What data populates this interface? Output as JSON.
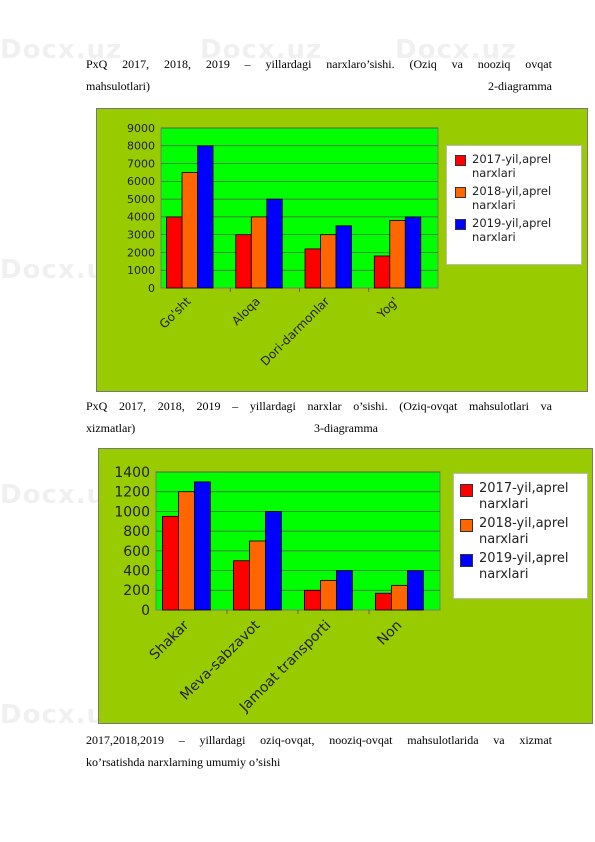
{
  "watermark_text": "Docx.uz",
  "paragraph1": {
    "line1_words": [
      "PxQ",
      "2017,",
      "2018,",
      "2019",
      "–",
      "yillardagi",
      "narxlaro’sishi.",
      "(Oziq",
      "va",
      "nooziq",
      "ovqat"
    ],
    "line2_left": "mahsulotlari)",
    "line2_right": "2-diagramma"
  },
  "paragraph2": {
    "line1": "PxQ   2017, 2018, 2019 – yillardagi narxlar o’sishi. (Oziq-ovqat mahsulotlari va",
    "line2_left": "xizmatlar)",
    "line2_right": "3-diagramma"
  },
  "paragraph3": {
    "line1": "2017,2018,2019 – yillardagi oziq-ovqat, nooziq-ovqat mahsulotlarida va xizmat",
    "line2": "ko’rsatishda narxlarning umumiy o’sishi"
  },
  "colors": {
    "outer_background": "#99cc00",
    "plot_background": "#00ff00",
    "series": [
      "#ff0000",
      "#ff6600",
      "#0000ff"
    ]
  },
  "chart_data": [
    {
      "type": "bar",
      "categories": [
        "Go'sht",
        "Aloqa",
        "Dori-darmonlar",
        "Yog'"
      ],
      "series": [
        {
          "name": "2017-yil,aprel narxlari",
          "values": [
            4000,
            3000,
            2200,
            1800
          ]
        },
        {
          "name": "2018-yil,aprel narxlari",
          "values": [
            6500,
            4000,
            3000,
            3800
          ]
        },
        {
          "name": "2019-yil,aprel narxlari",
          "values": [
            8000,
            5000,
            3500,
            4000
          ]
        }
      ],
      "ylim": [
        0,
        9000
      ],
      "yticks": [
        0,
        1000,
        2000,
        3000,
        4000,
        5000,
        6000,
        7000,
        8000,
        9000
      ],
      "grid": true,
      "legend": "right"
    },
    {
      "type": "bar",
      "categories": [
        "Shakar",
        "Meva-sabzavot",
        "Jamoat transporti",
        "Non"
      ],
      "series": [
        {
          "name": "2017-yil,aprel narxlari",
          "values": [
            950,
            500,
            200,
            170
          ]
        },
        {
          "name": "2018-yil,aprel narxlari",
          "values": [
            1200,
            700,
            300,
            250
          ]
        },
        {
          "name": "2019-yil,aprel narxlari",
          "values": [
            1300,
            1000,
            400,
            400
          ]
        }
      ],
      "ylim": [
        0,
        1400
      ],
      "yticks": [
        0,
        200,
        400,
        600,
        800,
        1000,
        1200,
        1400
      ],
      "grid": true,
      "legend": "right"
    }
  ]
}
